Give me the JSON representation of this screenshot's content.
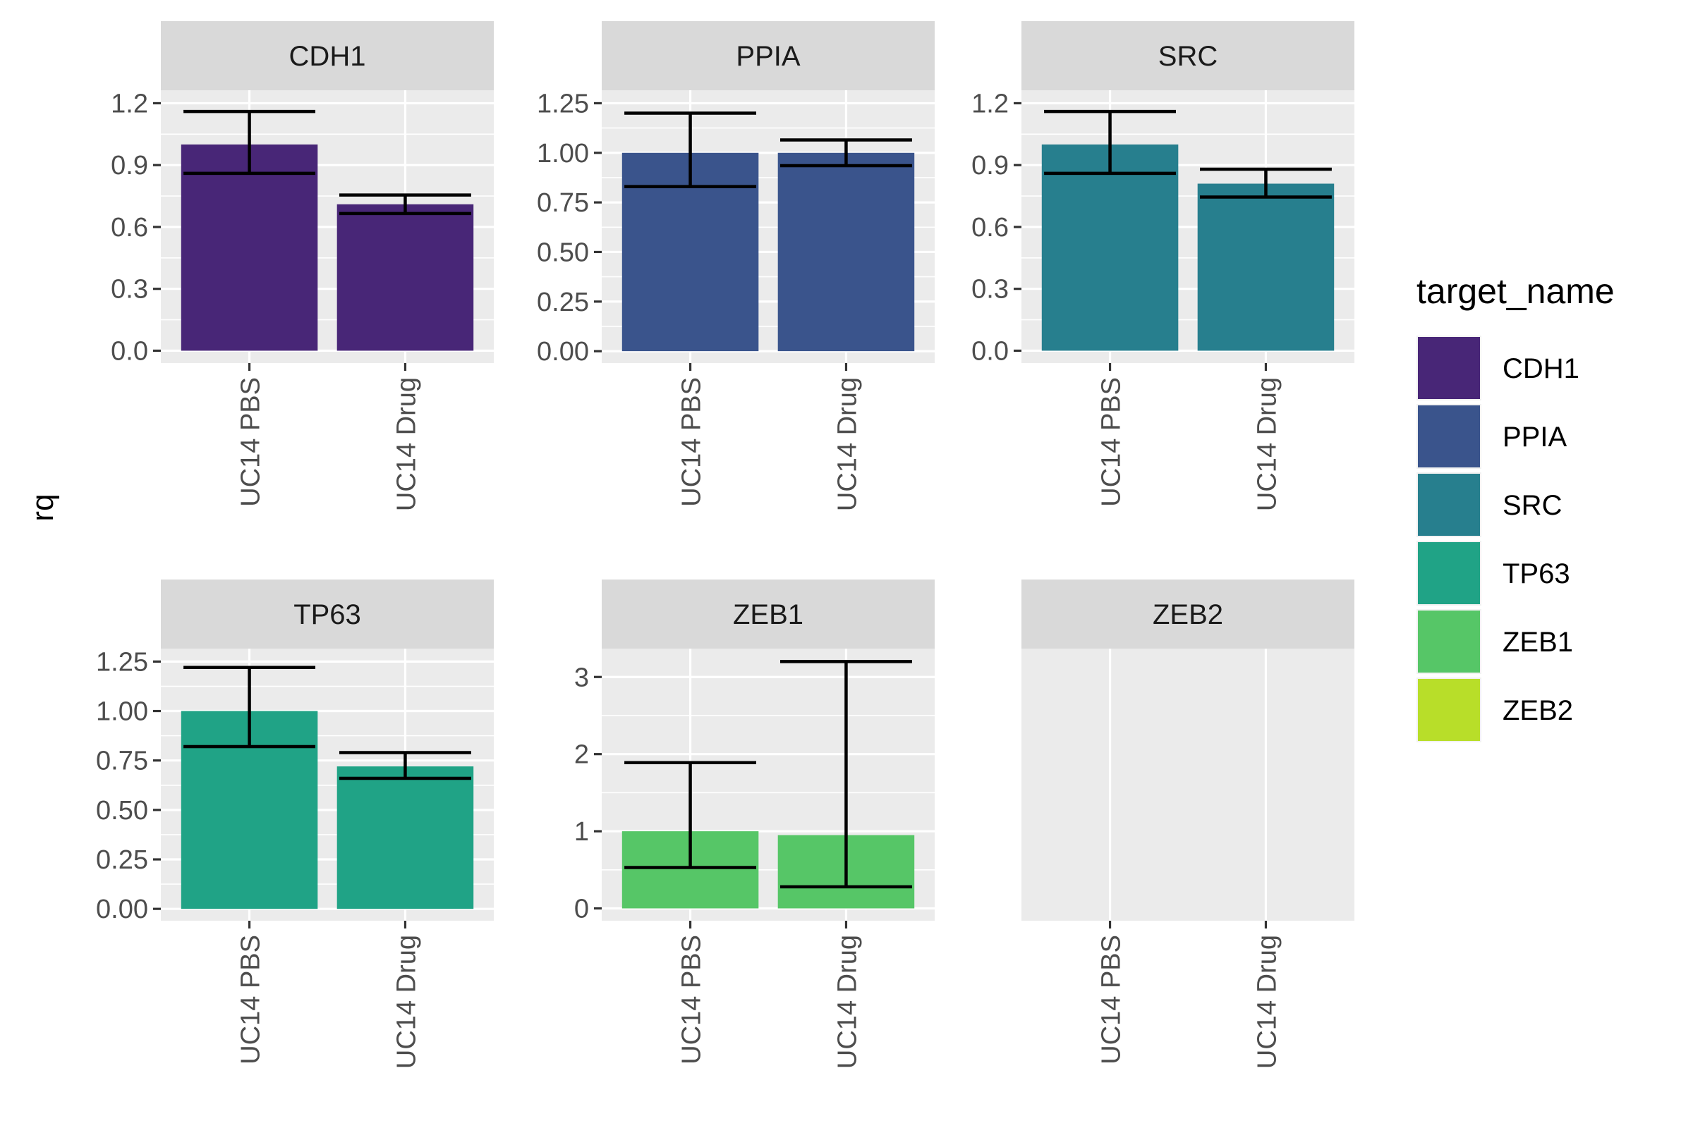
{
  "chart_data": {
    "type": "bar",
    "ylabel": "rq",
    "categories": [
      "UC14 PBS",
      "UC14 Drug"
    ],
    "legend": {
      "title": "target_name",
      "position": "right",
      "items": [
        {
          "label": "CDH1",
          "color": "#482677"
        },
        {
          "label": "PPIA",
          "color": "#3A548C"
        },
        {
          "label": "SRC",
          "color": "#277F8E"
        },
        {
          "label": "TP63",
          "color": "#20A386"
        },
        {
          "label": "ZEB1",
          "color": "#56C667"
        },
        {
          "label": "ZEB2",
          "color": "#B8DE29"
        }
      ]
    },
    "grid": true,
    "panels": [
      {
        "name": "CDH1",
        "color": "#482677",
        "ylim": [
          -0.06,
          1.2
        ],
        "yticks": [
          0.0,
          0.3,
          0.6,
          0.9,
          1.2
        ],
        "ytick_labels": [
          "0.0",
          "0.3",
          "0.6",
          "0.9",
          "1.2"
        ],
        "values": [
          1.0,
          0.71
        ],
        "error_low": [
          0.86,
          0.665
        ],
        "error_high": [
          1.16,
          0.755
        ]
      },
      {
        "name": "PPIA",
        "color": "#3A548C",
        "ylim": [
          -0.06,
          1.25
        ],
        "yticks": [
          0.0,
          0.25,
          0.5,
          0.75,
          1.0,
          1.25
        ],
        "ytick_labels": [
          "0.00",
          "0.25",
          "0.50",
          "0.75",
          "1.00",
          "1.25"
        ],
        "values": [
          1.0,
          1.0
        ],
        "error_low": [
          0.83,
          0.935
        ],
        "error_high": [
          1.2,
          1.065
        ]
      },
      {
        "name": "SRC",
        "color": "#277F8E",
        "ylim": [
          -0.06,
          1.2
        ],
        "yticks": [
          0.0,
          0.3,
          0.6,
          0.9,
          1.2
        ],
        "ytick_labels": [
          "0.0",
          "0.3",
          "0.6",
          "0.9",
          "1.2"
        ],
        "values": [
          1.0,
          0.81
        ],
        "error_low": [
          0.86,
          0.745
        ],
        "error_high": [
          1.16,
          0.88
        ]
      },
      {
        "name": "TP63",
        "color": "#20A386",
        "ylim": [
          -0.06,
          1.25
        ],
        "yticks": [
          0.0,
          0.25,
          0.5,
          0.75,
          1.0,
          1.25
        ],
        "ytick_labels": [
          "0.00",
          "0.25",
          "0.50",
          "0.75",
          "1.00",
          "1.25"
        ],
        "values": [
          1.0,
          0.72
        ],
        "error_low": [
          0.82,
          0.66
        ],
        "error_high": [
          1.22,
          0.79
        ]
      },
      {
        "name": "ZEB1",
        "color": "#56C667",
        "ylim": [
          -0.16,
          3.2
        ],
        "yticks": [
          0,
          1,
          2,
          3
        ],
        "ytick_labels": [
          "0",
          "1",
          "2",
          "3"
        ],
        "values": [
          1.0,
          0.95
        ],
        "error_low": [
          0.53,
          0.28
        ],
        "error_high": [
          1.89,
          3.2
        ]
      },
      {
        "name": "ZEB2",
        "color": "#B8DE29",
        "ylim": [
          0,
          1
        ],
        "yticks": [],
        "ytick_labels": [],
        "values": [],
        "error_low": [],
        "error_high": []
      }
    ]
  }
}
